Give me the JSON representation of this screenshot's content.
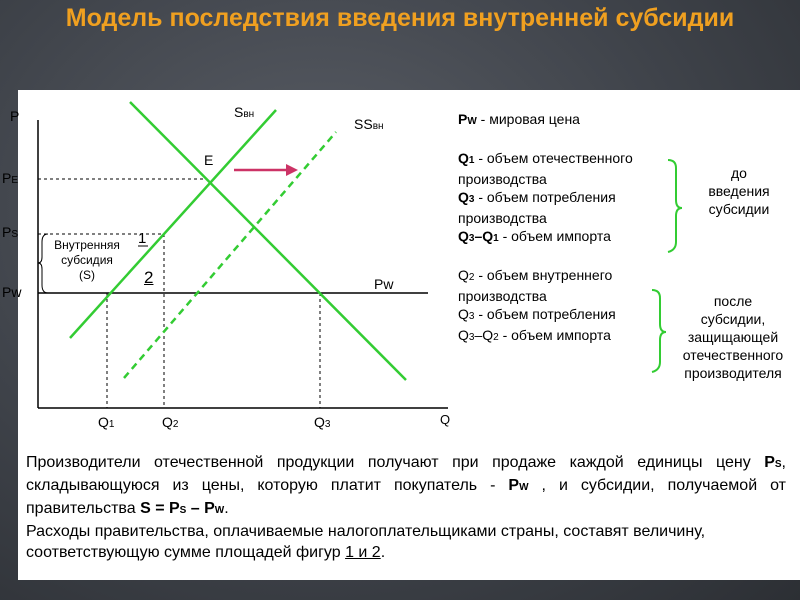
{
  "title": "Модель последствия введения внутренней субсидии",
  "axes": {
    "y": "P",
    "x": "Q"
  },
  "lines": {
    "supply": "S",
    "supply_sub": "вн",
    "supply_new": "SS",
    "supply_new_sub": "вн",
    "world_price": "Pw"
  },
  "prices": {
    "pe": "P",
    "pe_sub": "E",
    "ps": "P",
    "ps_sub": "S",
    "pw": "Pw"
  },
  "quantities": {
    "q1": "Q",
    "q1_sub": "1",
    "q2": "Q",
    "q2_sub": "2",
    "q3": "Q",
    "q3_sub": "3"
  },
  "point_e": "E",
  "subsidy_note": [
    "Внутренняя",
    "субсидия",
    "(S)"
  ],
  "area_1": "1",
  "area_2": "2",
  "legend": {
    "pw_label": "P",
    "pw_sub": "W",
    "pw_text": " -  мировая цена",
    "q1_label": "Q",
    "q1_sub": "1",
    "q1_text": " - объем отечественного производства",
    "q3_label": "Q",
    "q3_sub": "3",
    "q3_text": " - объем потребления производства",
    "import_label": "Q",
    "import_sub_a": "3",
    "import_dash": "–Q",
    "import_sub_b": "1",
    "import_text": " - объем импорта",
    "before_1": "до",
    "before_2": "введения",
    "before_3": "субсидии",
    "q2b_label": "Q",
    "q2b_sub": "2",
    "q2b_text": " - объем внутреннего производства",
    "q3b_label": "Q",
    "q3b_sub": "3",
    "q3b_text": " - объем потребления",
    "impb_label": "Q",
    "impb_sub_a": "3",
    "impb_dash": "–Q",
    "impb_sub_b": "2",
    "impb_text": " - объем импорта",
    "after_1": "после",
    "after_2": "субсидии,",
    "after_3": "защищающей",
    "after_4": "отечественного",
    "after_5": "производителя"
  },
  "footer": {
    "p1_a": "Производители отечественной продукции получают при продаже каждой единицы цену ",
    "p1_ps": "P",
    "p1_ps_sub": "S",
    "p1_b": ", складывающуюся из цены, которую платит покупатель - ",
    "p1_pw": "P",
    "p1_pw_sub": "W",
    "p1_c": " , и субсидии, получаемой от правительства ",
    "p1_formula": "S = P",
    "p1_f_sub1": "S",
    "p1_f_mid": " – P",
    "p1_f_sub2": "W",
    "p1_end": ".",
    "p2_a": "Расходы правительства, оплачиваемые налогоплательщиками страны, составят величину, соответствующую сумме площадей фигур ",
    "p2_fig": "1 и 2",
    "p2_end": "."
  },
  "colors": {
    "title": "#f0a020",
    "supply": "#33cc33",
    "arrow": "#cc3366",
    "bracket": "#33cc33"
  }
}
